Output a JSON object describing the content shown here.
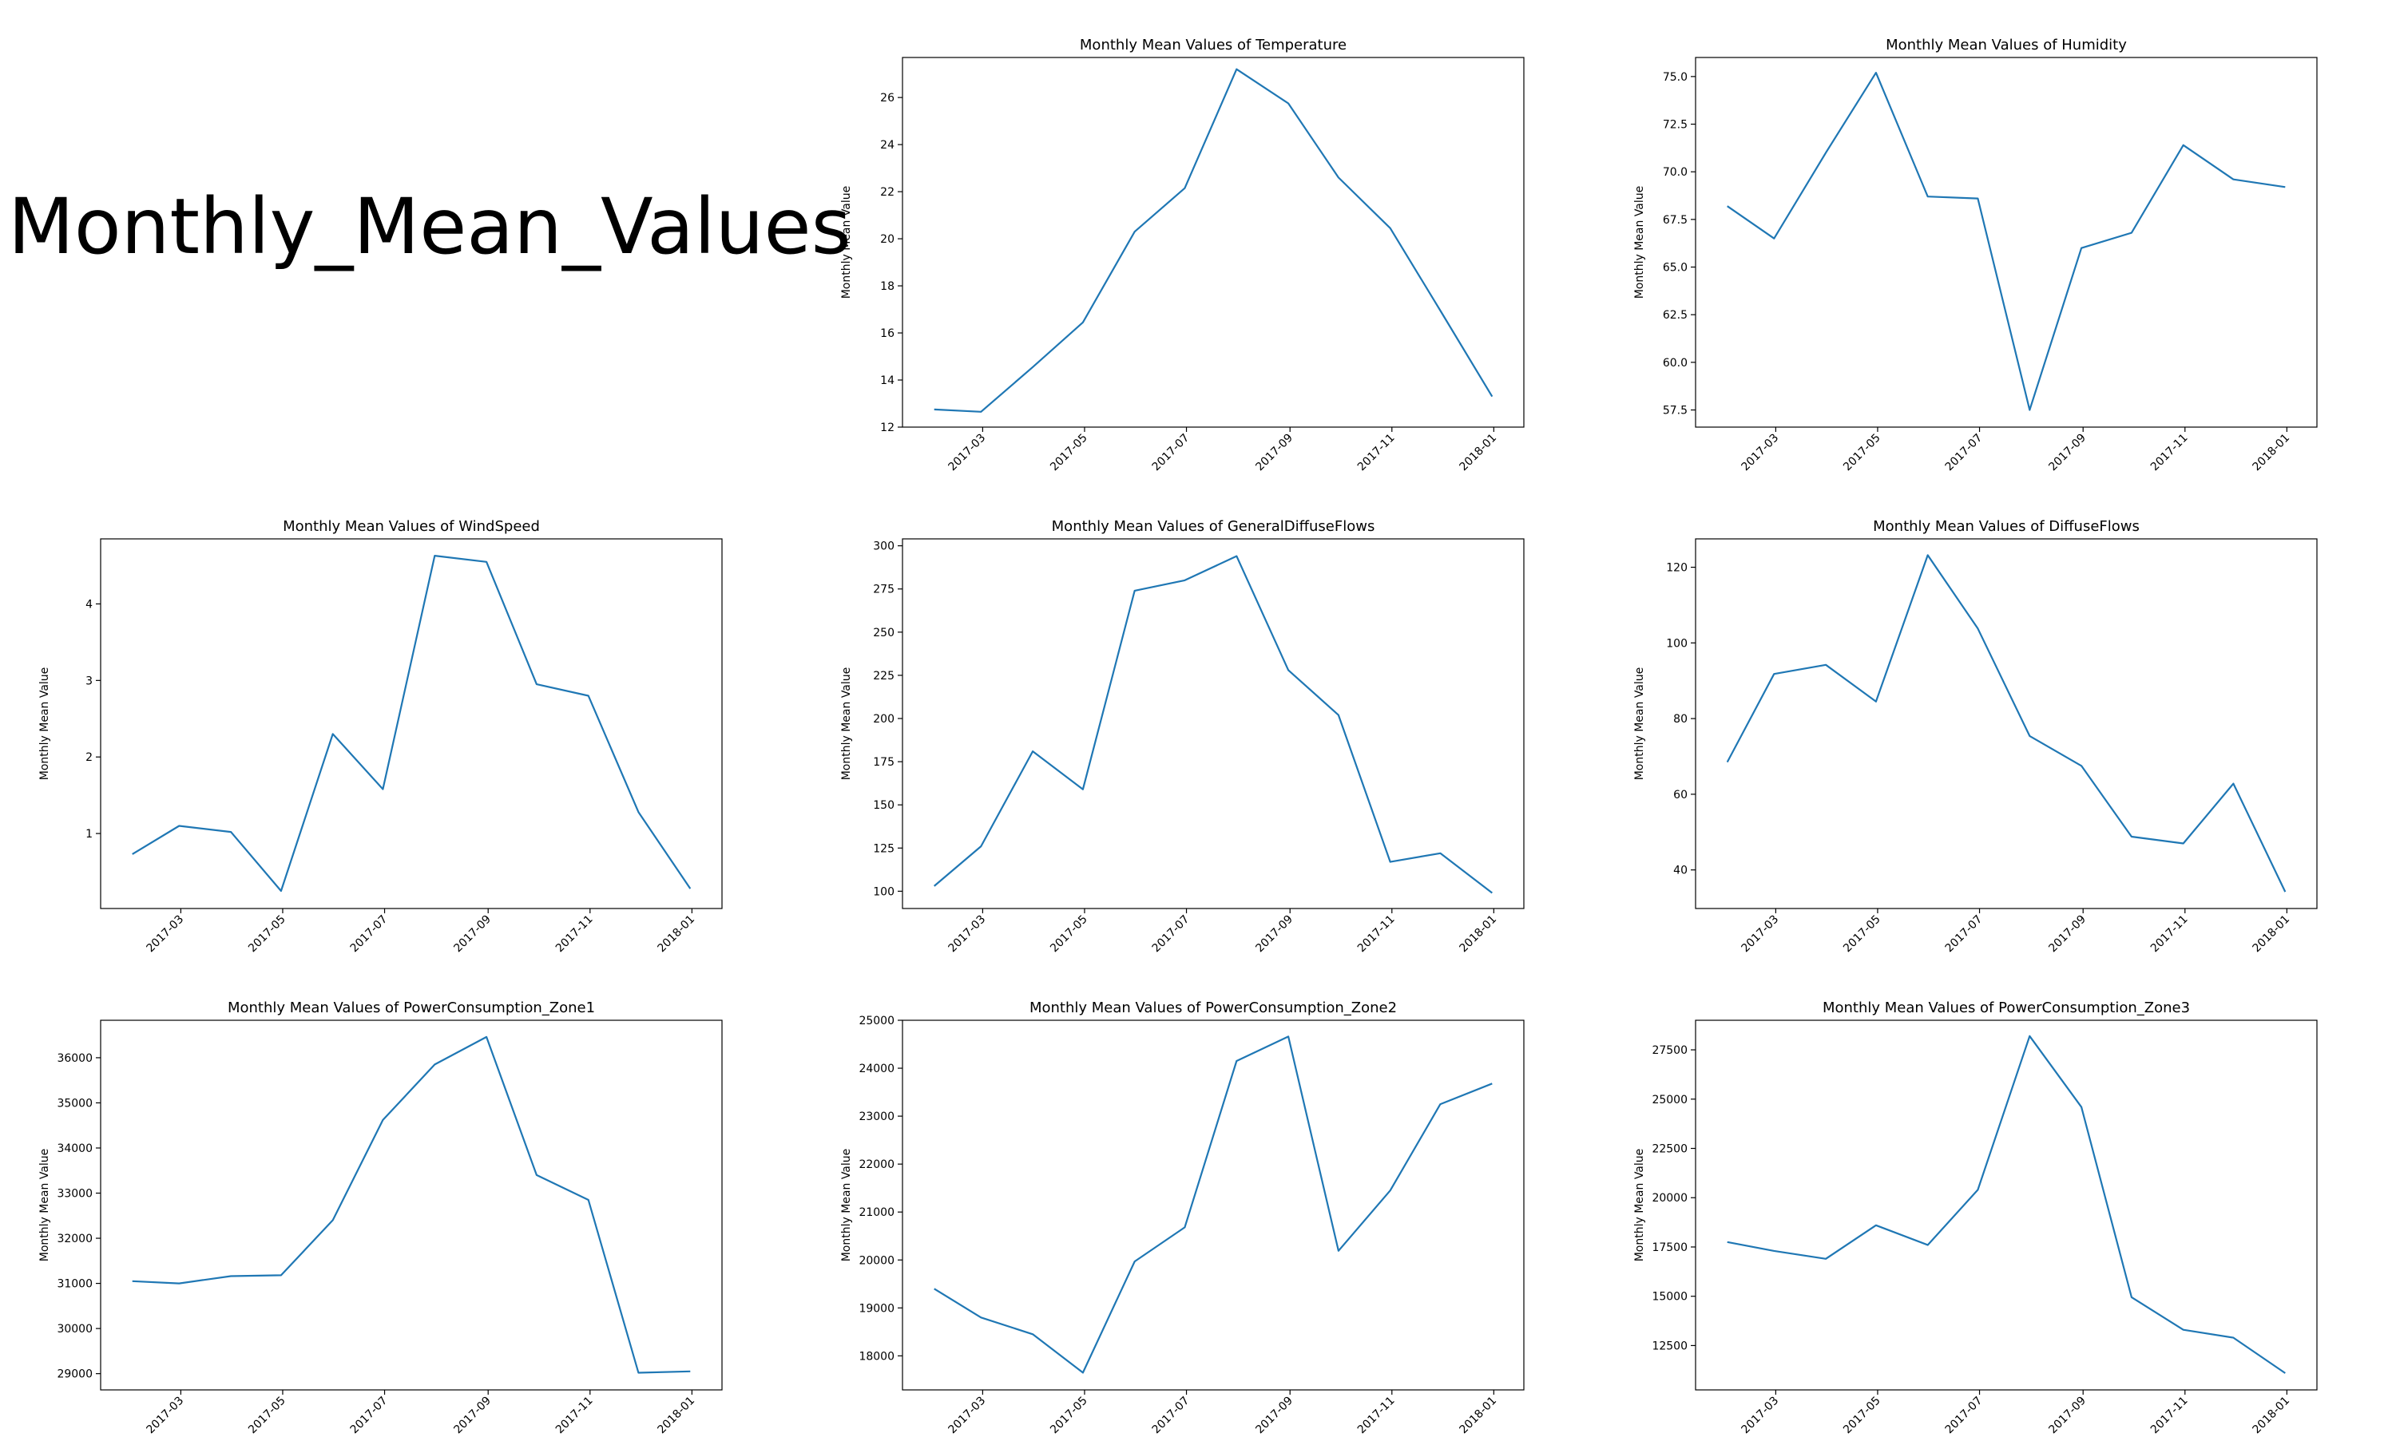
{
  "figure": {
    "title": "Monthly_Mean_Values",
    "line_color": "#1f77b4"
  },
  "chart_data": [
    {
      "type": "line",
      "title": "Monthly Mean Values of Temperature",
      "xlabel": "",
      "ylabel": "Monthly Mean Value",
      "x": [
        "2017-01-31",
        "2017-02-28",
        "2017-03-31",
        "2017-04-30",
        "2017-05-31",
        "2017-06-30",
        "2017-07-31",
        "2017-08-31",
        "2017-09-30",
        "2017-10-31",
        "2017-11-30",
        "2017-12-31"
      ],
      "values": [
        12.75,
        12.65,
        14.55,
        16.45,
        20.3,
        22.15,
        27.2,
        25.75,
        22.6,
        20.45,
        16.95,
        13.3
      ],
      "ylim": [
        12,
        27.7
      ],
      "yticks": [
        12,
        14,
        16,
        18,
        20,
        22,
        24,
        26
      ],
      "ytick_labels": [
        "12",
        "14",
        "16",
        "18",
        "20",
        "22",
        "24",
        "26"
      ],
      "xticks": [
        "2017-03",
        "2017-05",
        "2017-07",
        "2017-09",
        "2017-11",
        "2018-01"
      ]
    },
    {
      "type": "line",
      "title": "Monthly Mean Values of Humidity",
      "xlabel": "",
      "ylabel": "Monthly Mean Value",
      "x": [
        "2017-01-31",
        "2017-02-28",
        "2017-03-31",
        "2017-04-30",
        "2017-05-31",
        "2017-06-30",
        "2017-07-31",
        "2017-08-31",
        "2017-09-30",
        "2017-10-31",
        "2017-11-30",
        "2017-12-31"
      ],
      "values": [
        68.2,
        66.5,
        71.0,
        75.2,
        68.7,
        68.6,
        57.5,
        66.0,
        66.8,
        71.4,
        69.6,
        69.2
      ],
      "ylim": [
        56.6,
        76.0
      ],
      "yticks": [
        57.5,
        60,
        62.5,
        65,
        67.5,
        70,
        72.5,
        75
      ],
      "ytick_labels": [
        "57.5",
        "60.0",
        "62.5",
        "65.0",
        "67.5",
        "70.0",
        "72.5",
        "75.0"
      ],
      "xticks": [
        "2017-03",
        "2017-05",
        "2017-07",
        "2017-09",
        "2017-11",
        "2018-01"
      ]
    },
    {
      "type": "line",
      "title": "Monthly Mean Values of WindSpeed",
      "xlabel": "",
      "ylabel": "Monthly Mean Value",
      "x": [
        "2017-01-31",
        "2017-02-28",
        "2017-03-31",
        "2017-04-30",
        "2017-05-31",
        "2017-06-30",
        "2017-07-31",
        "2017-08-31",
        "2017-09-30",
        "2017-10-31",
        "2017-11-30",
        "2017-12-31"
      ],
      "values": [
        0.73,
        1.1,
        1.02,
        0.25,
        2.3,
        1.58,
        4.63,
        4.55,
        2.95,
        2.8,
        1.28,
        0.28
      ],
      "ylim": [
        0.02,
        4.85
      ],
      "yticks": [
        1,
        2,
        3,
        4
      ],
      "ytick_labels": [
        "1",
        "2",
        "3",
        "4"
      ],
      "xticks": [
        "2017-03",
        "2017-05",
        "2017-07",
        "2017-09",
        "2017-11",
        "2018-01"
      ]
    },
    {
      "type": "line",
      "title": "Monthly Mean Values of GeneralDiffuseFlows",
      "xlabel": "",
      "ylabel": "Monthly Mean Value",
      "x": [
        "2017-01-31",
        "2017-02-28",
        "2017-03-31",
        "2017-04-30",
        "2017-05-31",
        "2017-06-30",
        "2017-07-31",
        "2017-08-31",
        "2017-09-30",
        "2017-10-31",
        "2017-11-30",
        "2017-12-31"
      ],
      "values": [
        103,
        126,
        181,
        159,
        274,
        280,
        294,
        228,
        202,
        117,
        122,
        99
      ],
      "ylim": [
        90,
        304
      ],
      "yticks": [
        100,
        125,
        150,
        175,
        200,
        225,
        250,
        275,
        300
      ],
      "ytick_labels": [
        "100",
        "125",
        "150",
        "175",
        "200",
        "225",
        "250",
        "275",
        "300"
      ],
      "xticks": [
        "2017-03",
        "2017-05",
        "2017-07",
        "2017-09",
        "2017-11",
        "2018-01"
      ]
    },
    {
      "type": "line",
      "title": "Monthly Mean Values of DiffuseFlows",
      "xlabel": "",
      "ylabel": "Monthly Mean Value",
      "x": [
        "2017-01-31",
        "2017-02-28",
        "2017-03-31",
        "2017-04-30",
        "2017-05-31",
        "2017-06-30",
        "2017-07-31",
        "2017-08-31",
        "2017-09-30",
        "2017-10-31",
        "2017-11-30",
        "2017-12-31"
      ],
      "values": [
        68.5,
        91.8,
        94.2,
        84.5,
        123.2,
        103.8,
        75.4,
        67.5,
        48.8,
        47.0,
        62.8,
        34.2
      ],
      "ylim": [
        29.8,
        127.5
      ],
      "yticks": [
        40,
        60,
        80,
        100,
        120
      ],
      "ytick_labels": [
        "40",
        "60",
        "80",
        "100",
        "120"
      ],
      "xticks": [
        "2017-03",
        "2017-05",
        "2017-07",
        "2017-09",
        "2017-11",
        "2018-01"
      ]
    },
    {
      "type": "line",
      "title": "Monthly Mean Values of PowerConsumption_Zone1",
      "xlabel": "",
      "ylabel": "Monthly Mean Value",
      "x": [
        "2017-01-31",
        "2017-02-28",
        "2017-03-31",
        "2017-04-30",
        "2017-05-31",
        "2017-06-30",
        "2017-07-31",
        "2017-08-31",
        "2017-09-30",
        "2017-10-31",
        "2017-11-30",
        "2017-12-31"
      ],
      "values": [
        31050,
        31000,
        31160,
        31180,
        32400,
        34620,
        35850,
        36460,
        33400,
        32850,
        29020,
        29050
      ],
      "ylim": [
        28640,
        36830
      ],
      "yticks": [
        29000,
        30000,
        31000,
        32000,
        33000,
        34000,
        35000,
        36000
      ],
      "ytick_labels": [
        "29000",
        "30000",
        "31000",
        "32000",
        "33000",
        "34000",
        "35000",
        "36000"
      ],
      "xticks": [
        "2017-03",
        "2017-05",
        "2017-07",
        "2017-09",
        "2017-11",
        "2018-01"
      ]
    },
    {
      "type": "line",
      "title": "Monthly Mean Values of PowerConsumption_Zone2",
      "xlabel": "",
      "ylabel": "Monthly Mean Value",
      "x": [
        "2017-01-31",
        "2017-02-28",
        "2017-03-31",
        "2017-04-30",
        "2017-05-31",
        "2017-06-30",
        "2017-07-31",
        "2017-08-31",
        "2017-09-30",
        "2017-10-31",
        "2017-11-30",
        "2017-12-31"
      ],
      "values": [
        19400,
        18800,
        18450,
        17650,
        19970,
        20680,
        24150,
        24660,
        20190,
        21450,
        23250,
        23680
      ],
      "ylim": [
        17290,
        25000
      ],
      "yticks": [
        18000,
        19000,
        20000,
        21000,
        22000,
        23000,
        24000,
        25000
      ],
      "ytick_labels": [
        "18000",
        "19000",
        "20000",
        "21000",
        "22000",
        "23000",
        "24000",
        "25000"
      ],
      "xticks": [
        "2017-03",
        "2017-05",
        "2017-07",
        "2017-09",
        "2017-11",
        "2018-01"
      ]
    },
    {
      "type": "line",
      "title": "Monthly Mean Values of PowerConsumption_Zone3",
      "xlabel": "",
      "ylabel": "Monthly Mean Value",
      "x": [
        "2017-01-31",
        "2017-02-28",
        "2017-03-31",
        "2017-04-30",
        "2017-05-31",
        "2017-06-30",
        "2017-07-31",
        "2017-08-31",
        "2017-09-30",
        "2017-10-31",
        "2017-11-30",
        "2017-12-31"
      ],
      "values": [
        17750,
        17300,
        16900,
        18600,
        17600,
        20400,
        28200,
        24600,
        14950,
        13300,
        12900,
        11100
      ],
      "ylim": [
        10250,
        29000
      ],
      "yticks": [
        12500,
        15000,
        17500,
        20000,
        22500,
        25000,
        27500
      ],
      "ytick_labels": [
        "12500",
        "15000",
        "17500",
        "20000",
        "22500",
        "25000",
        "27500"
      ],
      "xticks": [
        "2017-03",
        "2017-05",
        "2017-07",
        "2017-09",
        "2017-11",
        "2018-01"
      ]
    }
  ]
}
